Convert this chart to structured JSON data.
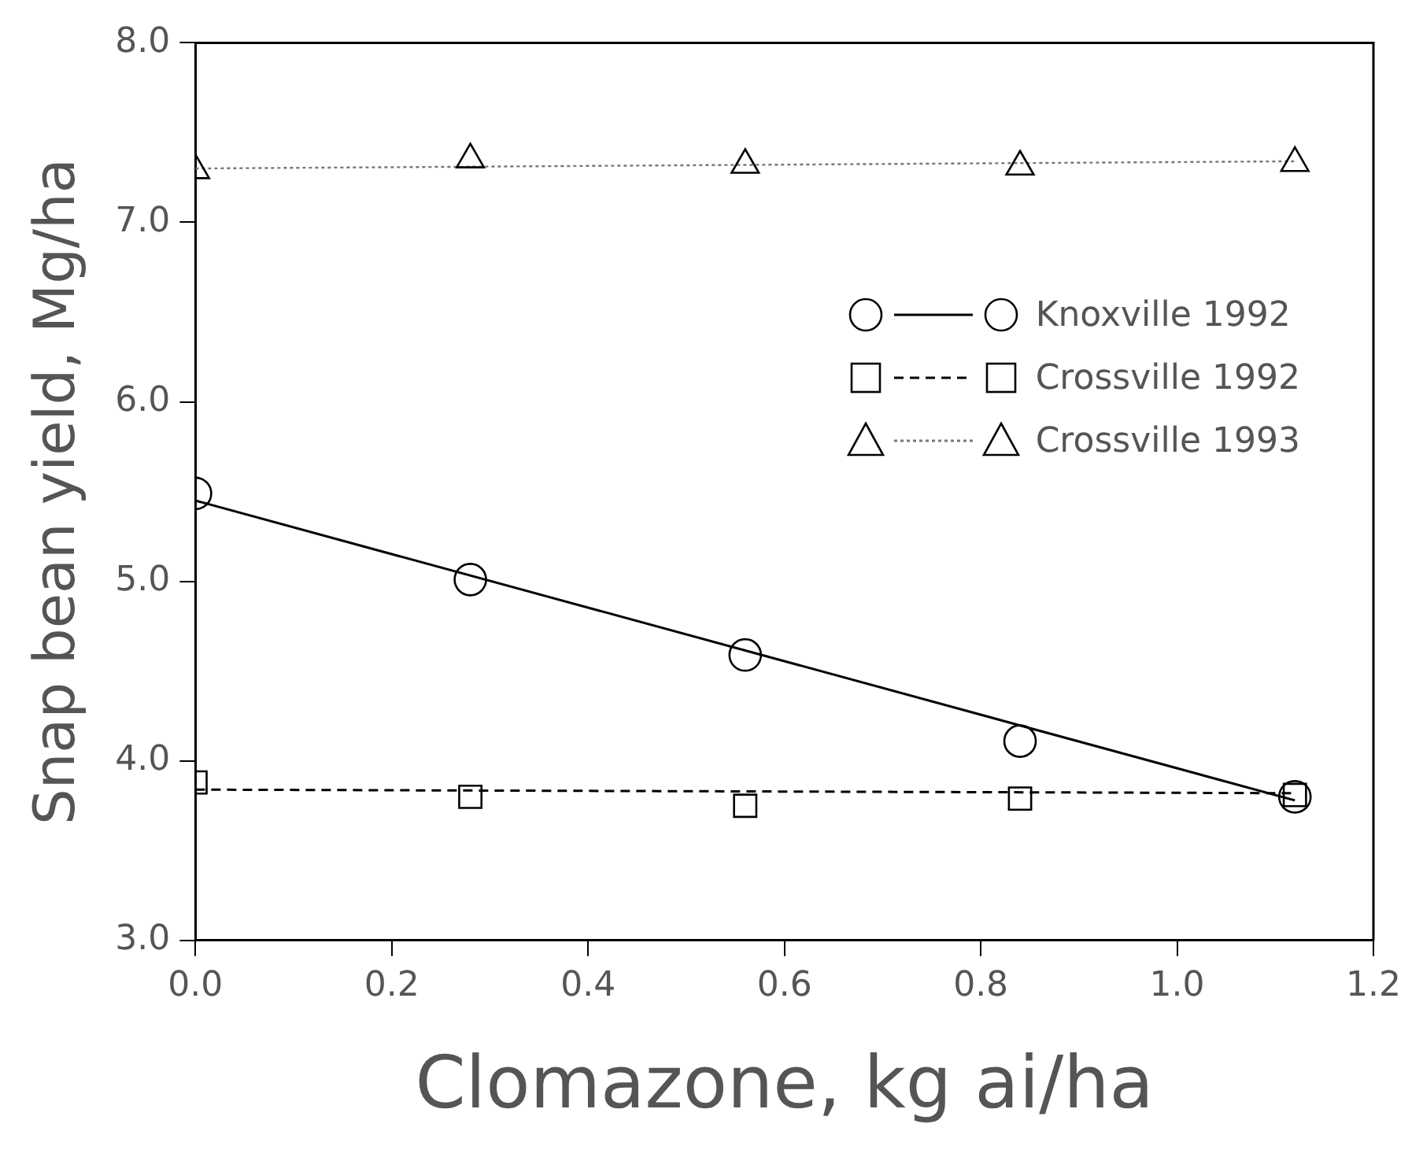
{
  "chart_data": {
    "type": "scatter",
    "xlabel": "Clomazone, kg ai/ha",
    "ylabel": "Snap bean yield, Mg/ha",
    "xlim": [
      0,
      1.2
    ],
    "xticks": [
      {
        "value": 0,
        "label": "0.0"
      },
      0.2,
      0.4,
      0.6,
      0.8,
      {
        "value": 1,
        "label": "1.0"
      },
      1.2
    ],
    "ylim": [
      3,
      8
    ],
    "yticks": [
      {
        "value": 3,
        "label": "3.0"
      },
      {
        "value": 4,
        "label": "4.0"
      },
      {
        "value": 5,
        "label": "5.0"
      },
      {
        "value": 6,
        "label": "6.0"
      },
      {
        "value": 7,
        "label": "7.0"
      },
      {
        "value": 8,
        "label": "8.0"
      }
    ],
    "grid": false,
    "legend": "right",
    "series": [
      {
        "type": "scatter",
        "name": "Knoxville 1992",
        "color": "#000000",
        "marker": "circle",
        "x": [
          0,
          0.28,
          0.56,
          0.84,
          1.12
        ],
        "values": [
          5.49,
          5.01,
          4.59,
          4.11,
          3.8
        ]
      },
      {
        "type": "line",
        "color": "#000000",
        "marker": "none",
        "line_style": "solid",
        "x": [
          0,
          1.12
        ],
        "values": [
          5.45,
          3.78
        ]
      },
      {
        "type": "scatter",
        "name": "Crossville 1992",
        "color": "#000000",
        "marker": "square",
        "x": [
          0,
          0.28,
          0.56,
          0.84,
          1.12
        ],
        "values": [
          3.88,
          3.8,
          3.75,
          3.79,
          3.81
        ]
      },
      {
        "type": "line",
        "color": "#000000",
        "marker": "none",
        "line_style": "dashed",
        "x": [
          0,
          1.12
        ],
        "values": [
          3.84,
          3.82
        ]
      },
      {
        "type": "scatter",
        "name": "Crossville 1993",
        "color": "#000000",
        "marker": "triangle",
        "x": [
          0,
          0.28,
          0.56,
          0.84,
          1.12
        ],
        "values": [
          7.29,
          7.35,
          7.32,
          7.31,
          7.33
        ]
      },
      {
        "type": "line",
        "color": "#777777",
        "marker": "none",
        "line_style": "dotted",
        "x": [
          0,
          1.12
        ],
        "values": [
          7.3,
          7.34
        ]
      }
    ]
  }
}
